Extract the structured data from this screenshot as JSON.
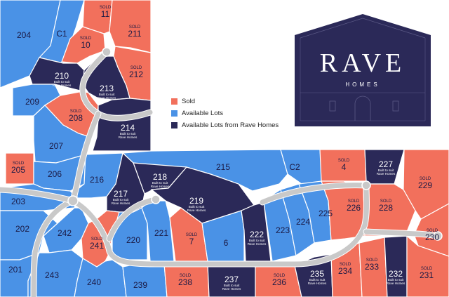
{
  "colors": {
    "sold": "#f2705c",
    "available": "#4a92e6",
    "rave": "#2b2958",
    "road": "#c9c9c9"
  },
  "legend": [
    {
      "label": "Sold",
      "color_key": "sold"
    },
    {
      "label": "Available Lots",
      "color_key": "available"
    },
    {
      "label": "Available Lots from Rave Homes",
      "color_key": "rave"
    }
  ],
  "logo": {
    "brand": "RAVE",
    "tagline": "HOMES"
  },
  "sold_text": "SOLD",
  "built_text": "Built to suit",
  "rave_text": "Rave Homes",
  "lots": [
    {
      "id": "204",
      "status": "available"
    },
    {
      "id": "C1",
      "status": "available"
    },
    {
      "id": "11",
      "status": "sold"
    },
    {
      "id": "211",
      "status": "sold"
    },
    {
      "id": "10",
      "status": "sold"
    },
    {
      "id": "212",
      "status": "sold"
    },
    {
      "id": "210",
      "status": "rave"
    },
    {
      "id": "213",
      "status": "rave"
    },
    {
      "id": "209",
      "status": "available"
    },
    {
      "id": "208",
      "status": "sold"
    },
    {
      "id": "214",
      "status": "rave"
    },
    {
      "id": "207",
      "status": "available"
    },
    {
      "id": "205",
      "status": "sold"
    },
    {
      "id": "206",
      "status": "available"
    },
    {
      "id": "216",
      "status": "available"
    },
    {
      "id": "215",
      "status": "available"
    },
    {
      "id": "C2",
      "status": "available"
    },
    {
      "id": "218",
      "status": "rave"
    },
    {
      "id": "217",
      "status": "rave"
    },
    {
      "id": "219",
      "status": "rave"
    },
    {
      "id": "203",
      "status": "available"
    },
    {
      "id": "202",
      "status": "available"
    },
    {
      "id": "242",
      "status": "available"
    },
    {
      "id": "241",
      "status": "sold"
    },
    {
      "id": "220",
      "status": "available"
    },
    {
      "id": "221",
      "status": "available"
    },
    {
      "id": "7",
      "status": "sold"
    },
    {
      "id": "6",
      "status": "available"
    },
    {
      "id": "222",
      "status": "rave"
    },
    {
      "id": "223",
      "status": "available"
    },
    {
      "id": "224",
      "status": "available"
    },
    {
      "id": "225",
      "status": "available"
    },
    {
      "id": "4",
      "status": "sold"
    },
    {
      "id": "227",
      "status": "rave"
    },
    {
      "id": "229",
      "status": "sold"
    },
    {
      "id": "226",
      "status": "sold"
    },
    {
      "id": "228",
      "status": "sold"
    },
    {
      "id": "230",
      "status": "sold"
    },
    {
      "id": "201",
      "status": "available"
    },
    {
      "id": "243",
      "status": "available"
    },
    {
      "id": "240",
      "status": "available"
    },
    {
      "id": "239",
      "status": "available"
    },
    {
      "id": "238",
      "status": "sold"
    },
    {
      "id": "237",
      "status": "rave"
    },
    {
      "id": "236",
      "status": "sold"
    },
    {
      "id": "235",
      "status": "rave"
    },
    {
      "id": "234",
      "status": "sold"
    },
    {
      "id": "233",
      "status": "sold"
    },
    {
      "id": "232",
      "status": "rave"
    },
    {
      "id": "231",
      "status": "sold"
    }
  ]
}
